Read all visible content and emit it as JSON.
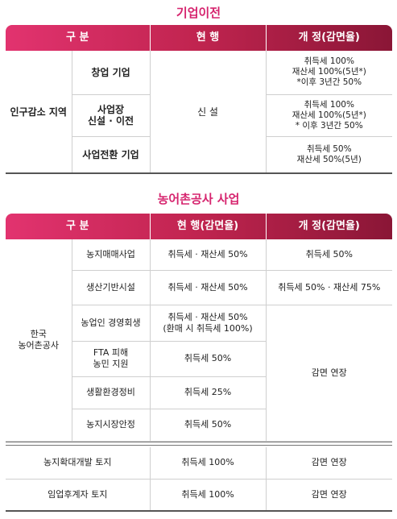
{
  "section1": {
    "title": "기업이전",
    "headers": [
      "구 분",
      "현 행",
      "개 정(감면율)"
    ],
    "group": "인구감소 지역",
    "current": "신 설",
    "rows": [
      {
        "label": "창업 기업",
        "revision": [
          "취득세 100%",
          "재산세 100%(5년*)",
          "*이후 3년간 50%"
        ]
      },
      {
        "label": [
          "사업장",
          "신설 · 이전"
        ],
        "revision": [
          "취득세 100%",
          "재산세 100%(5년*)",
          "* 이후 3년간 50%"
        ]
      },
      {
        "label": "사업전환 기업",
        "revision": [
          "취득세 50%",
          "재산세 50%(5년)"
        ]
      }
    ]
  },
  "section2": {
    "title": "농어촌공사 사업",
    "headers": [
      "구 분",
      "현 행(감면율)",
      "개 정(감면율)"
    ],
    "group": [
      "한국",
      "농어촌공사"
    ],
    "rows": [
      {
        "label": "농지매매사업",
        "current": "취득세 · 재산세 50%",
        "revision": "취득세 50%"
      },
      {
        "label": "생산기반시설",
        "current": "취득세 · 재산세 50%",
        "revision": "취득세 50% · 재산세 75%"
      },
      {
        "label": "농업인 경영회생",
        "current": [
          "취득세 · 재산세 50%",
          "(환매 시 취득세 100%)"
        ]
      },
      {
        "label": [
          "FTA 피해",
          "농민 지원"
        ],
        "current": "취득세 50%"
      },
      {
        "label": "생활환경정비",
        "current": "취득세 25%"
      },
      {
        "label": "농지시장안정",
        "current": "취득세 50%"
      }
    ],
    "merged_revision": "감면 연장",
    "extra_rows": [
      {
        "label": "농지확대개발 토지",
        "current": "취득세 100%",
        "revision": "감면 연장"
      },
      {
        "label": "임업후계자 토지",
        "current": "취득세 100%",
        "revision": "감면 연장"
      }
    ]
  }
}
